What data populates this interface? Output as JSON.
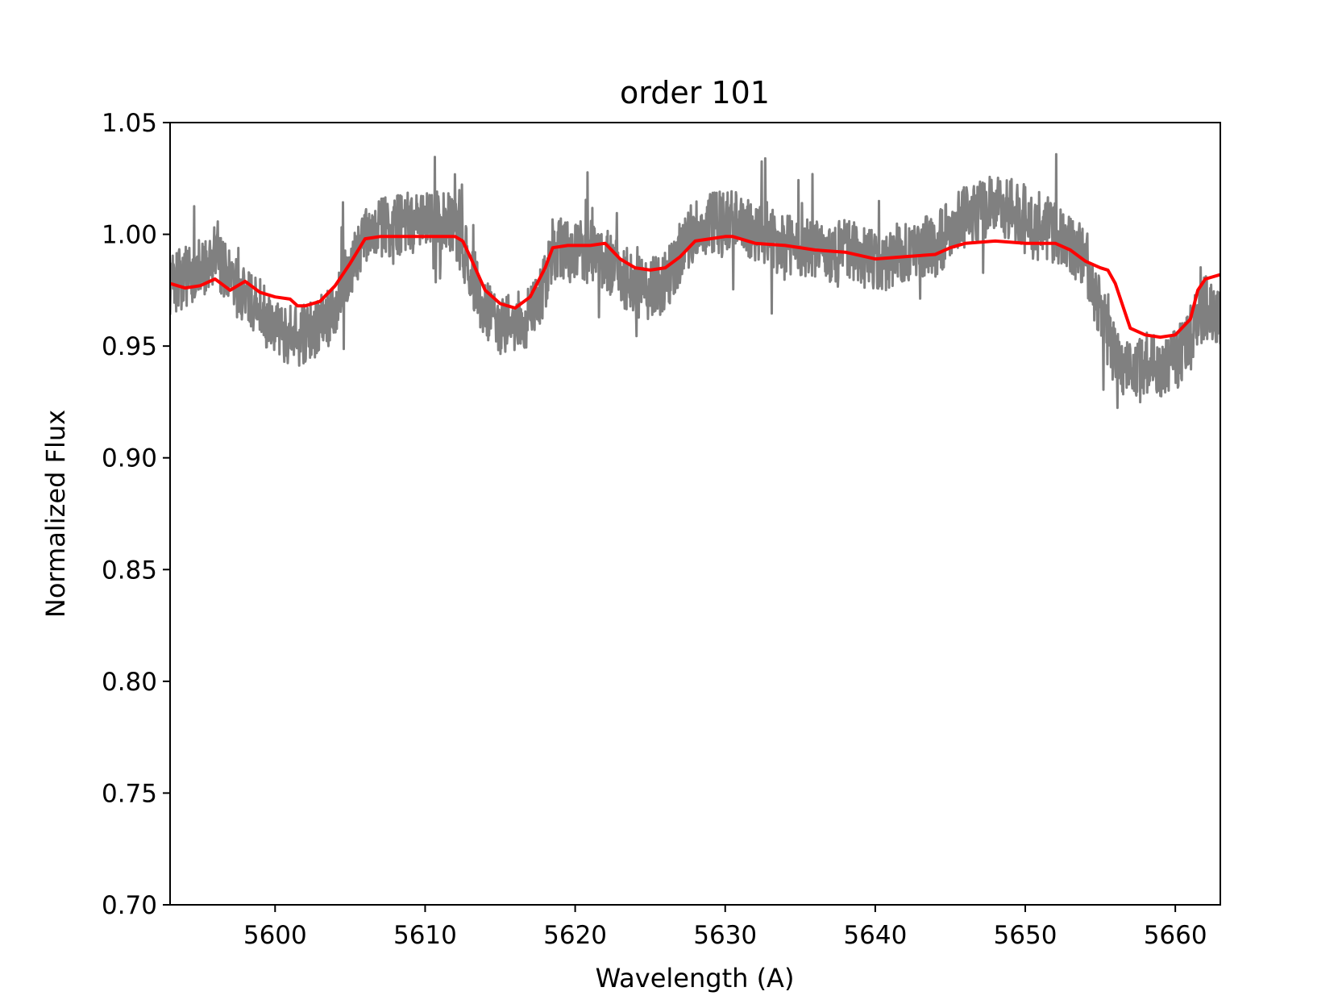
{
  "chart_data": {
    "type": "line",
    "title": "order 101",
    "xlabel": "Wavelength (A)",
    "ylabel": "Normalized Flux",
    "xlim": [
      5593.0,
      5663.0
    ],
    "ylim": [
      0.7,
      1.05
    ],
    "xticks": [
      5600,
      5610,
      5620,
      5630,
      5640,
      5650,
      5660
    ],
    "yticks": [
      0.7,
      0.75,
      0.8,
      0.85,
      0.9,
      0.95,
      1.0,
      1.05
    ],
    "xtick_labels": [
      "5600",
      "5610",
      "5620",
      "5630",
      "5640",
      "5650",
      "5660"
    ],
    "ytick_labels": [
      "0.70",
      "0.75",
      "0.80",
      "0.85",
      "0.90",
      "0.95",
      "1.00",
      "1.05"
    ],
    "grid": false,
    "legend": "none",
    "series": [
      {
        "color": "#808080",
        "style": "noisy observed spectrum",
        "x": [
          5593.0,
          5594.5,
          5596.0,
          5597.5,
          5599.0,
          5600.5,
          5602.0,
          5603.5,
          5605.0,
          5606.0,
          5607.5,
          5609.0,
          5610.5,
          5612.0,
          5613.0,
          5614.0,
          5615.0,
          5616.0,
          5617.0,
          5618.0,
          5618.5,
          5620.0,
          5621.5,
          5623.0,
          5624.5,
          5626.0,
          5627.5,
          5629.0,
          5630.5,
          5632.0,
          5634.0,
          5636.0,
          5638.0,
          5640.0,
          5642.0,
          5644.0,
          5646.0,
          5647.5,
          5649.0,
          5651.0,
          5652.5,
          5654.0,
          5655.0,
          5656.0,
          5657.0,
          5658.0,
          5659.0,
          5660.0,
          5661.0,
          5662.0,
          5663.0
        ],
        "y": [
          0.978,
          0.982,
          0.99,
          0.976,
          0.966,
          0.955,
          0.955,
          0.962,
          0.985,
          1.002,
          1.004,
          1.005,
          1.006,
          1.004,
          0.985,
          0.965,
          0.96,
          0.962,
          0.962,
          0.978,
          0.994,
          0.992,
          0.992,
          0.982,
          0.975,
          0.978,
          0.998,
          1.005,
          1.006,
          1.0,
          0.995,
          0.992,
          0.993,
          0.988,
          0.992,
          0.995,
          1.008,
          1.012,
          1.012,
          1.005,
          0.998,
          0.99,
          0.965,
          0.945,
          0.938,
          0.942,
          0.94,
          0.943,
          0.955,
          0.968,
          0.96
        ]
      },
      {
        "color": "#ff0000",
        "style": "smooth fitted model",
        "x": [
          5593.0,
          5594.0,
          5595.0,
          5596.0,
          5597.0,
          5598.0,
          5599.0,
          5600.0,
          5601.0,
          5601.5,
          5602.0,
          5603.0,
          5604.0,
          5605.0,
          5606.0,
          5607.0,
          5608.0,
          5609.0,
          5610.0,
          5611.0,
          5612.0,
          5612.5,
          5613.0,
          5614.0,
          5615.0,
          5616.0,
          5617.0,
          5618.0,
          5618.5,
          5619.5,
          5621.0,
          5622.0,
          5623.0,
          5624.0,
          5625.0,
          5626.0,
          5627.0,
          5628.0,
          5629.0,
          5630.0,
          5630.5,
          5631.0,
          5632.0,
          5634.0,
          5636.0,
          5638.0,
          5640.0,
          5642.0,
          5644.0,
          5645.0,
          5646.0,
          5648.0,
          5650.0,
          5652.0,
          5653.0,
          5654.0,
          5655.0,
          5655.5,
          5656.0,
          5656.5,
          5657.0,
          5658.0,
          5659.0,
          5660.0,
          5661.0,
          5661.5,
          5662.0,
          5663.0
        ],
        "y": [
          0.978,
          0.976,
          0.977,
          0.98,
          0.975,
          0.979,
          0.974,
          0.972,
          0.971,
          0.968,
          0.968,
          0.97,
          0.977,
          0.987,
          0.998,
          0.999,
          0.999,
          0.999,
          0.999,
          0.999,
          0.999,
          0.997,
          0.99,
          0.975,
          0.969,
          0.967,
          0.972,
          0.985,
          0.994,
          0.995,
          0.995,
          0.996,
          0.989,
          0.985,
          0.984,
          0.985,
          0.99,
          0.997,
          0.998,
          0.999,
          0.999,
          0.998,
          0.996,
          0.995,
          0.993,
          0.992,
          0.989,
          0.99,
          0.991,
          0.994,
          0.996,
          0.997,
          0.996,
          0.996,
          0.993,
          0.988,
          0.985,
          0.984,
          0.978,
          0.968,
          0.958,
          0.955,
          0.954,
          0.955,
          0.962,
          0.975,
          0.98,
          0.982
        ]
      }
    ]
  }
}
